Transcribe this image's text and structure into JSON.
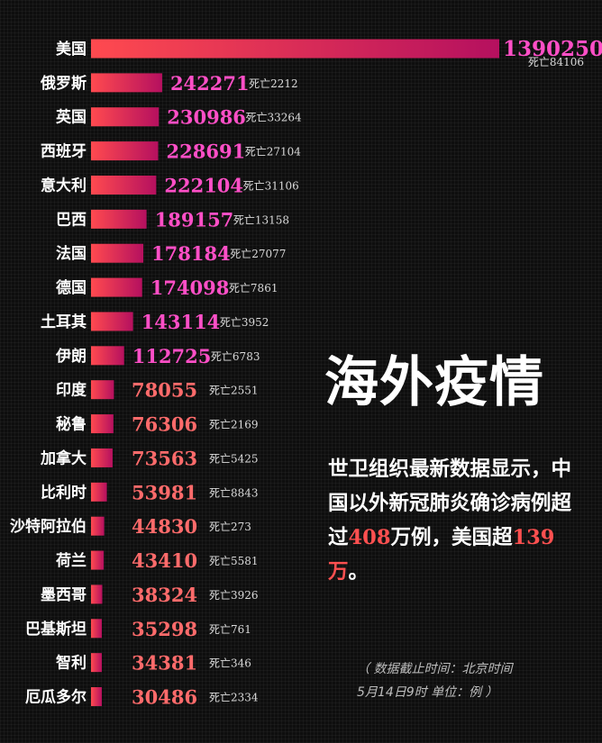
{
  "chart_data": {
    "type": "bar",
    "orientation": "horizontal",
    "title": "海外疫情",
    "categories": [
      "美国",
      "俄罗斯",
      "英国",
      "西班牙",
      "意大利",
      "巴西",
      "法国",
      "德国",
      "土耳其",
      "伊朗",
      "印度",
      "秘鲁",
      "加拿大",
      "比利时",
      "沙特阿拉伯",
      "荷兰",
      "墨西哥",
      "巴基斯坦",
      "智利",
      "厄瓜多尔"
    ],
    "values": [
      1390250,
      242271,
      230986,
      228691,
      222104,
      189157,
      178184,
      174098,
      143114,
      112725,
      78055,
      76306,
      73563,
      53981,
      44830,
      43410,
      38324,
      35298,
      34381,
      30486
    ],
    "deaths": [
      "死亡84106",
      "死亡2212",
      "死亡33264",
      "死亡27104",
      "死亡31106",
      "死亡13158",
      "死亡27077",
      "死亡7861",
      "死亡3952",
      "死亡6783",
      "死亡2551",
      "死亡2169",
      "死亡5425",
      "死亡8843",
      "死亡273",
      "死亡5581",
      "死亡3926",
      "死亡761",
      "死亡346",
      "死亡2334"
    ],
    "colors": {
      "bar_start": "#ff4a4f",
      "bar_end": "#b5105f",
      "value_high": "#ff4fc7",
      "value_low": "#ff6b6b"
    }
  },
  "headline": "海外疫情",
  "body": {
    "part1": "世卫组织最新数据显示，中国以外新冠肺炎确诊病例超过",
    "num1": "408",
    "part2": "万例，美国超",
    "num2": "139万",
    "part3": "。"
  },
  "footnote": {
    "line1": "（ 数据截止时间：北京时间",
    "line2": "5月14日9时  单位：例 ）"
  }
}
